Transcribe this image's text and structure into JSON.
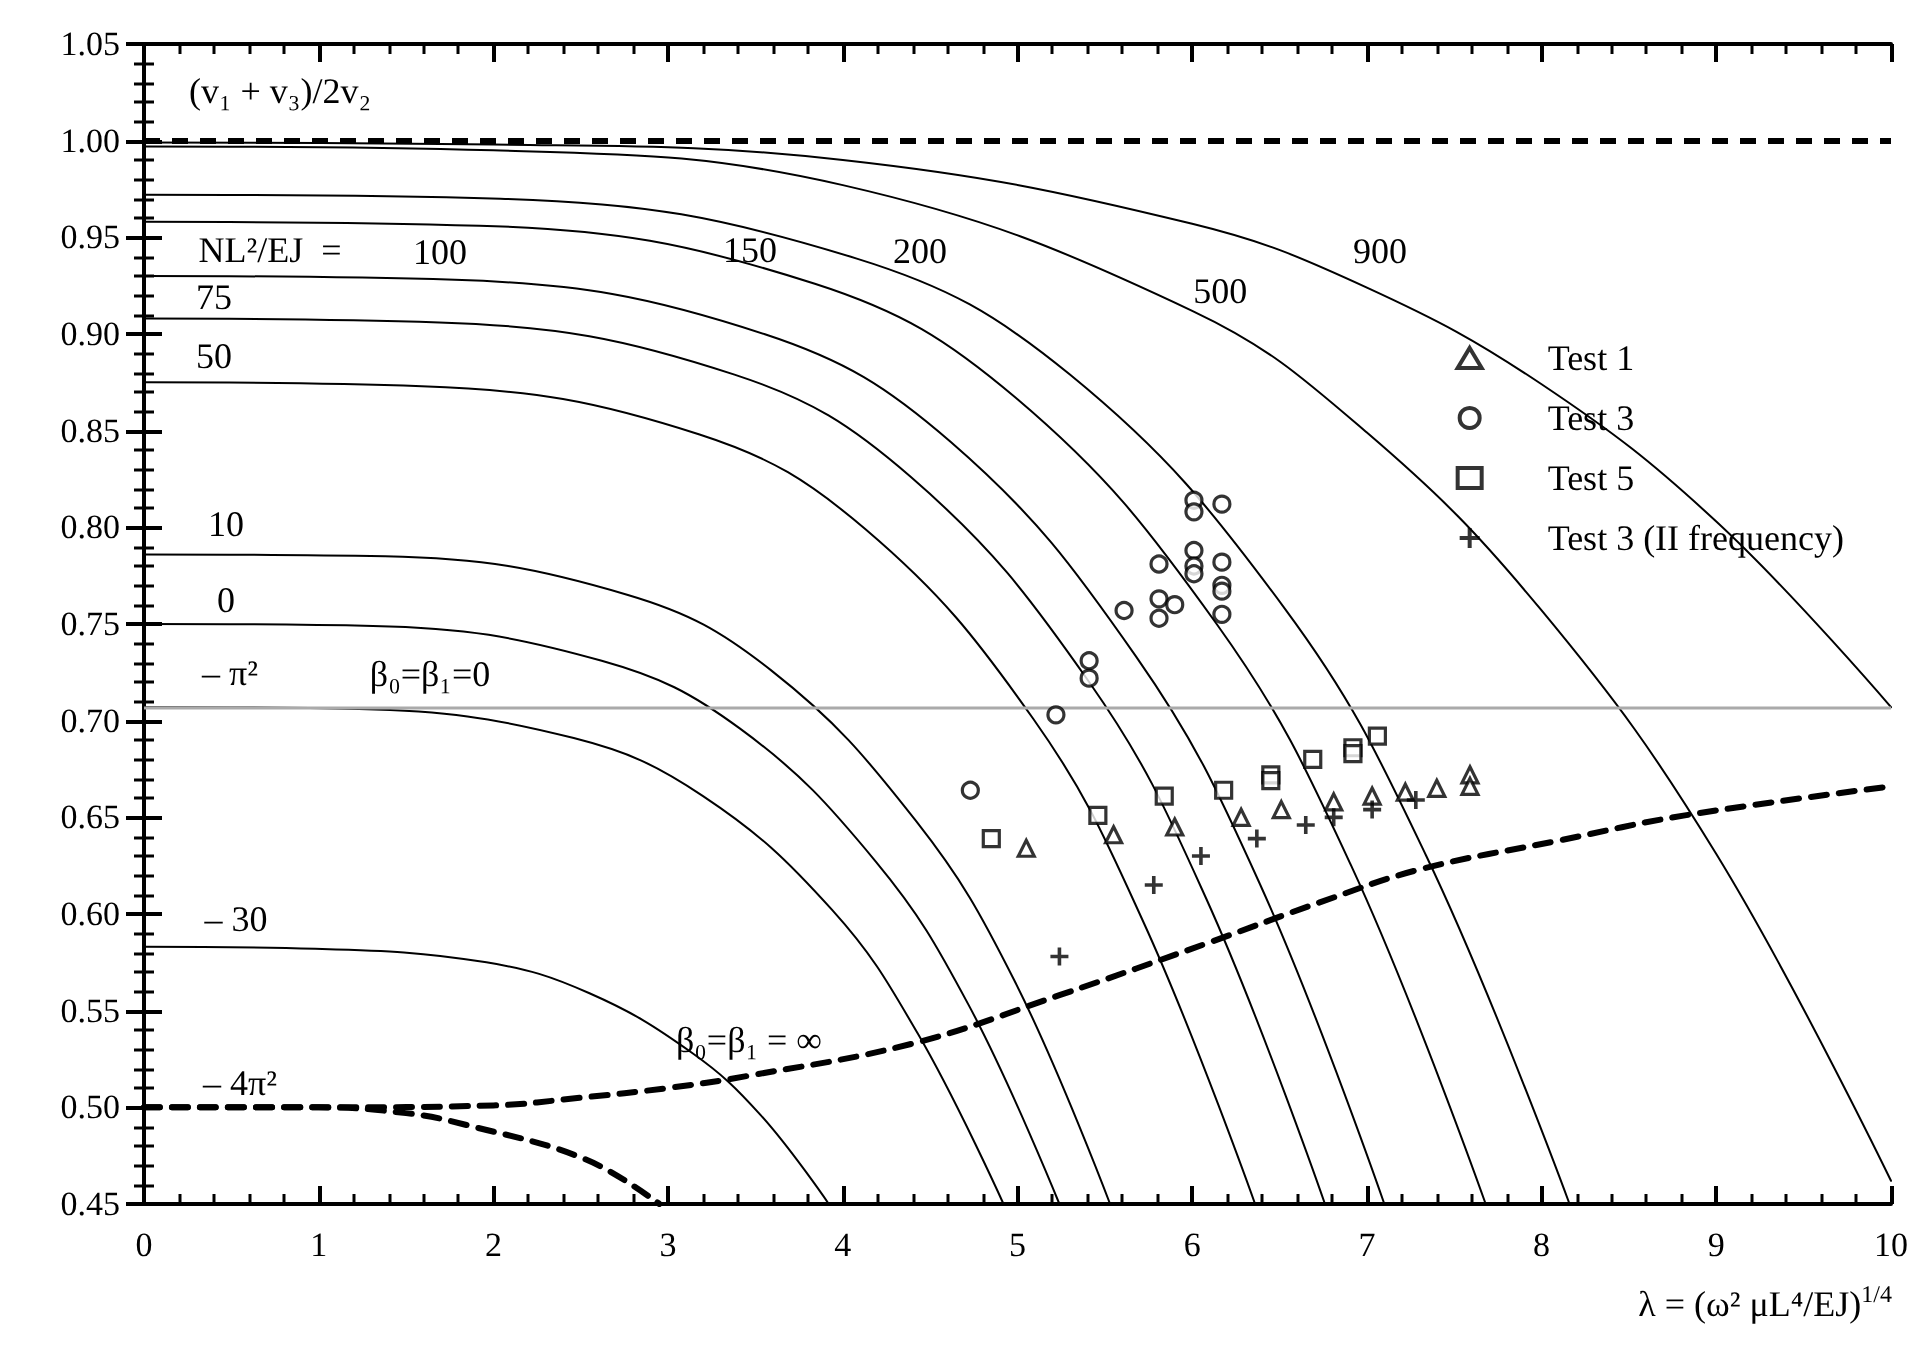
{
  "chart_data": {
    "type": "line",
    "xlabel": "λ = (ω² μL⁴/EJ)$^{1/4}$",
    "xlim": [
      0,
      10
    ],
    "xticks": [
      0,
      1,
      2,
      3,
      4,
      5,
      6,
      7,
      8,
      9,
      10
    ],
    "ylim": [
      0.45,
      1.05
    ],
    "yticks": [
      {
        "value": 0.45,
        "label": "0.45"
      },
      {
        "value": 0.5,
        "label": "0.50"
      },
      {
        "value": 0.55,
        "label": "0.55"
      },
      {
        "value": 0.6,
        "label": "0.60"
      },
      {
        "value": 0.65,
        "label": "0.65"
      },
      {
        "value": 0.7,
        "label": "0.70"
      },
      {
        "value": 0.75,
        "label": "0.75"
      },
      {
        "value": 0.8,
        "label": "0.80"
      },
      {
        "value": 0.85,
        "label": "0.85"
      },
      {
        "value": 0.9,
        "label": "0.90"
      },
      {
        "value": 0.95,
        "label": "0.95"
      },
      {
        "value": 1.0,
        "label": "1.00"
      },
      {
        "value": 1.05,
        "label": "1.05"
      }
    ],
    "grid": false,
    "legend": "top right",
    "marker": "none",
    "line_style": "solid",
    "ref_lines": [
      {
        "axis": "y",
        "value": 1.0,
        "label": "(v₁ + v₃)/2v₂",
        "color": "#000000",
        "line_style": "dashed"
      },
      {
        "axis": "y",
        "value": 0.707,
        "color": "#aaaaaa",
        "line_style": "solid"
      }
    ],
    "series": [
      {
        "name": "– 30",
        "color": "#000000",
        "x": [
          0,
          0.98,
          1.96,
          2.55,
          3.14,
          3.53,
          3.92
        ],
        "values": [
          0.583,
          0.582,
          0.575,
          0.559,
          0.528,
          0.496,
          0.45
        ]
      },
      {
        "name": "– π²",
        "color": "#000000",
        "x": [
          0,
          1.23,
          2.46,
          3.2,
          3.94,
          4.43,
          4.92
        ],
        "values": [
          0.707,
          0.706,
          0.691,
          0.661,
          0.602,
          0.538,
          0.45
        ]
      },
      {
        "name": "0",
        "color": "#000000",
        "x": [
          0,
          1.31,
          2.62,
          3.41,
          4.19,
          4.72,
          5.24
        ],
        "values": [
          0.75,
          0.749,
          0.731,
          0.696,
          0.627,
          0.553,
          0.45
        ]
      },
      {
        "name": "10",
        "color": "#000000",
        "x": [
          0,
          1.38,
          2.77,
          3.59,
          4.42,
          4.98,
          5.53
        ],
        "values": [
          0.786,
          0.785,
          0.765,
          0.726,
          0.648,
          0.566,
          0.45
        ]
      },
      {
        "name": "50",
        "color": "#000000",
        "x": [
          0,
          1.59,
          3.18,
          4.13,
          5.09,
          5.72,
          6.36
        ],
        "values": [
          0.875,
          0.873,
          0.848,
          0.799,
          0.701,
          0.596,
          0.45
        ]
      },
      {
        "name": "75",
        "color": "#000000",
        "x": [
          0,
          1.69,
          3.38,
          4.39,
          5.41,
          6.08,
          6.76
        ],
        "values": [
          0.908,
          0.906,
          0.879,
          0.826,
          0.72,
          0.608,
          0.45
        ]
      },
      {
        "name": "100",
        "color": "#000000",
        "x": [
          0,
          1.78,
          3.55,
          4.62,
          5.68,
          6.39,
          7.1
        ],
        "values": [
          0.93,
          0.928,
          0.9,
          0.844,
          0.733,
          0.615,
          0.45
        ]
      },
      {
        "name": "150",
        "color": "#000000",
        "x": [
          0,
          1.92,
          3.84,
          4.99,
          6.14,
          6.91,
          7.68
        ],
        "values": [
          0.958,
          0.956,
          0.926,
          0.867,
          0.75,
          0.625,
          0.45
        ]
      },
      {
        "name": "200",
        "color": "#000000",
        "x": [
          0,
          2.04,
          4.08,
          5.3,
          6.53,
          7.34,
          8.16
        ],
        "values": [
          0.972,
          0.97,
          0.939,
          0.879,
          0.758,
          0.63,
          0.45
        ]
      },
      {
        "name": "500",
        "color": "#000000",
        "x": [
          0,
          2,
          4,
          6,
          7,
          8,
          9,
          10
        ],
        "values": [
          0.997,
          0.995,
          0.977,
          0.912,
          0.849,
          0.757,
          0.631,
          0.462
        ]
      },
      {
        "name": "900",
        "color": "#000000",
        "x": [
          0,
          2,
          4,
          6,
          7,
          8,
          9,
          10
        ],
        "values": [
          0.999,
          0.998,
          0.99,
          0.957,
          0.924,
          0.874,
          0.803,
          0.707
        ]
      },
      {
        "name": "β₀=β₁ = ∞",
        "color": "#000000",
        "line_style": "dashed",
        "x": [
          0,
          1,
          2,
          2.5,
          3,
          3.44,
          4.4,
          5.24,
          6.12,
          6.73,
          7.3,
          8.1,
          8.82,
          10
        ],
        "values": [
          0.5,
          0.5,
          0.501,
          0.505,
          0.51,
          0.516,
          0.533,
          0.558,
          0.586,
          0.606,
          0.623,
          0.638,
          0.651,
          0.666
        ]
      },
      {
        "name": "– 4π²",
        "color": "#000000",
        "line_style": "dashed",
        "x": [
          0,
          1,
          1.5,
          1.84,
          2.53,
          2.95
        ],
        "values": [
          0.5,
          0.5,
          0.497,
          0.491,
          0.473,
          0.45
        ]
      },
      {
        "type": "scatter",
        "name": "Test 1",
        "color": "#000000",
        "marker": "triangle",
        "x": [
          5.05,
          5.55,
          5.9,
          6.28,
          6.51,
          6.81,
          7.03,
          7.22,
          7.4,
          7.59,
          7.59
        ],
        "values": [
          0.634,
          0.641,
          0.645,
          0.65,
          0.654,
          0.658,
          0.661,
          0.663,
          0.665,
          0.672,
          0.666
        ]
      },
      {
        "type": "scatter",
        "name": "Test 3",
        "color": "#000000",
        "marker": "circle",
        "x": [
          4.73,
          5.22,
          5.41,
          5.41,
          5.61,
          5.81,
          5.81,
          5.81,
          5.9,
          6.01,
          6.01,
          6.01,
          6.01,
          6.01,
          6.17,
          6.17,
          6.17,
          6.17,
          6.17
        ],
        "values": [
          0.664,
          0.703,
          0.731,
          0.722,
          0.757,
          0.781,
          0.763,
          0.753,
          0.76,
          0.814,
          0.808,
          0.788,
          0.78,
          0.776,
          0.812,
          0.782,
          0.77,
          0.767,
          0.755
        ]
      },
      {
        "type": "scatter",
        "name": "Test 5",
        "color": "#000000",
        "marker": "square",
        "x": [
          4.85,
          5.46,
          5.84,
          6.18,
          6.45,
          6.45,
          6.69,
          6.92,
          6.92,
          7.06
        ],
        "values": [
          0.639,
          0.651,
          0.661,
          0.664,
          0.672,
          0.669,
          0.68,
          0.686,
          0.683,
          0.692
        ]
      },
      {
        "type": "scatter",
        "name": "Test 3 (II frequency)",
        "color": "#000000",
        "marker": "cross",
        "x": [
          5.24,
          5.78,
          6.05,
          6.37,
          6.65,
          6.81,
          7.03,
          7.28
        ],
        "values": [
          0.578,
          0.615,
          0.63,
          0.639,
          0.646,
          0.65,
          0.654,
          0.659
        ]
      }
    ],
    "annotations": [
      "NL²/EJ  =",
      "β₀=β₁=0"
    ]
  }
}
